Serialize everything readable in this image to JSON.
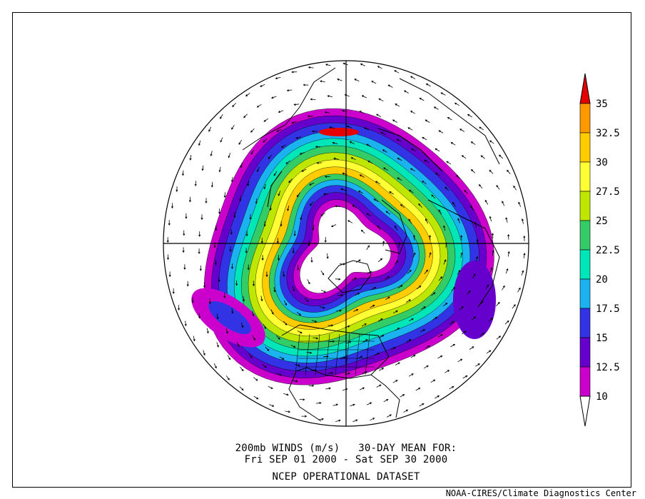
{
  "caption": {
    "line1": "200mb WINDS (m/s)   30-DAY MEAN FOR:",
    "line2": "Fri SEP 01 2000 - Sat SEP 30 2000",
    "line3": "NCEP OPERATIONAL DATASET"
  },
  "credit": "NOAA-CIRES/Climate Diagnostics Center",
  "colorbar": {
    "labels": [
      "35",
      "32.5",
      "30",
      "27.5",
      "25",
      "22.5",
      "20",
      "17.5",
      "15",
      "12.5",
      "10"
    ],
    "colors": [
      "#e60000",
      "#ff9900",
      "#ffcc00",
      "#ffff33",
      "#bfe600",
      "#33cc66",
      "#00e6b8",
      "#1ab3f0",
      "#3333e6",
      "#6600cc",
      "#cc00cc",
      "#ffffff"
    ]
  },
  "map": {
    "projection": "north-polar-stereographic",
    "variable": "200mb wind speed",
    "units": "m/s"
  }
}
